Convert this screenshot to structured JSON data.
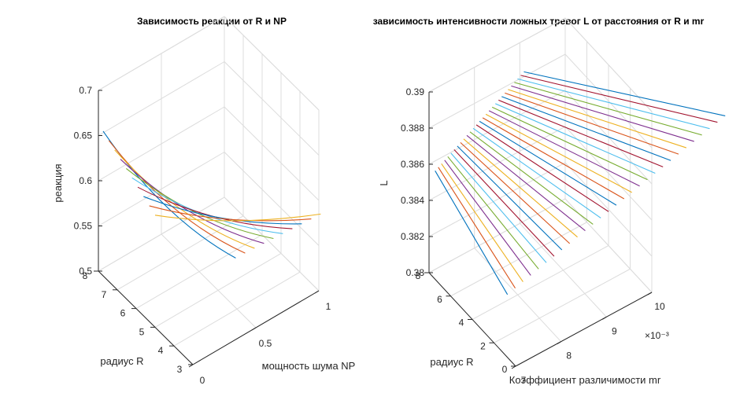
{
  "chart_data": [
    {
      "type": "line",
      "title": "Зависимость реакции от R и NP",
      "xlabel": "мощность шума NP",
      "ylabel": "радиус R",
      "zlabel": "реакция",
      "x_ticks": [
        "0",
        "0.5",
        "1"
      ],
      "y_ticks": [
        "3",
        "4",
        "5",
        "6",
        "7",
        "8"
      ],
      "z_ticks": [
        "0.5",
        "0.55",
        "0.6",
        "0.65",
        "0.7"
      ],
      "xlim": [
        0,
        1
      ],
      "ylim": [
        3,
        8
      ],
      "zlim": [
        0.5,
        0.7
      ],
      "grid": true,
      "series_count": 10,
      "colors": [
        "#0072BD",
        "#D95319",
        "#EDB120",
        "#7E2F8E",
        "#77AC30",
        "#4DBEEE",
        "#A2142F"
      ]
    },
    {
      "type": "line",
      "title": "зависимость интенсивности ложных тревог L от расстояния от R и mr",
      "xlabel": "Коэффициент различимости mr",
      "ylabel": "радиус R",
      "zlabel": "L",
      "x_ticks": [
        "7",
        "8",
        "9",
        "10"
      ],
      "x_exponent": "×10⁻³",
      "y_ticks": [
        "0",
        "2",
        "4",
        "6",
        "8"
      ],
      "z_ticks": [
        "0.38",
        "0.382",
        "0.384",
        "0.386",
        "0.388",
        "0.39"
      ],
      "xlim": [
        0.007,
        0.01
      ],
      "ylim": [
        0,
        8
      ],
      "zlim": [
        0.38,
        0.39
      ],
      "grid": true,
      "series_count": 29,
      "colors": [
        "#0072BD",
        "#D95319",
        "#EDB120",
        "#7E2F8E",
        "#77AC30",
        "#4DBEEE",
        "#A2142F"
      ]
    }
  ]
}
